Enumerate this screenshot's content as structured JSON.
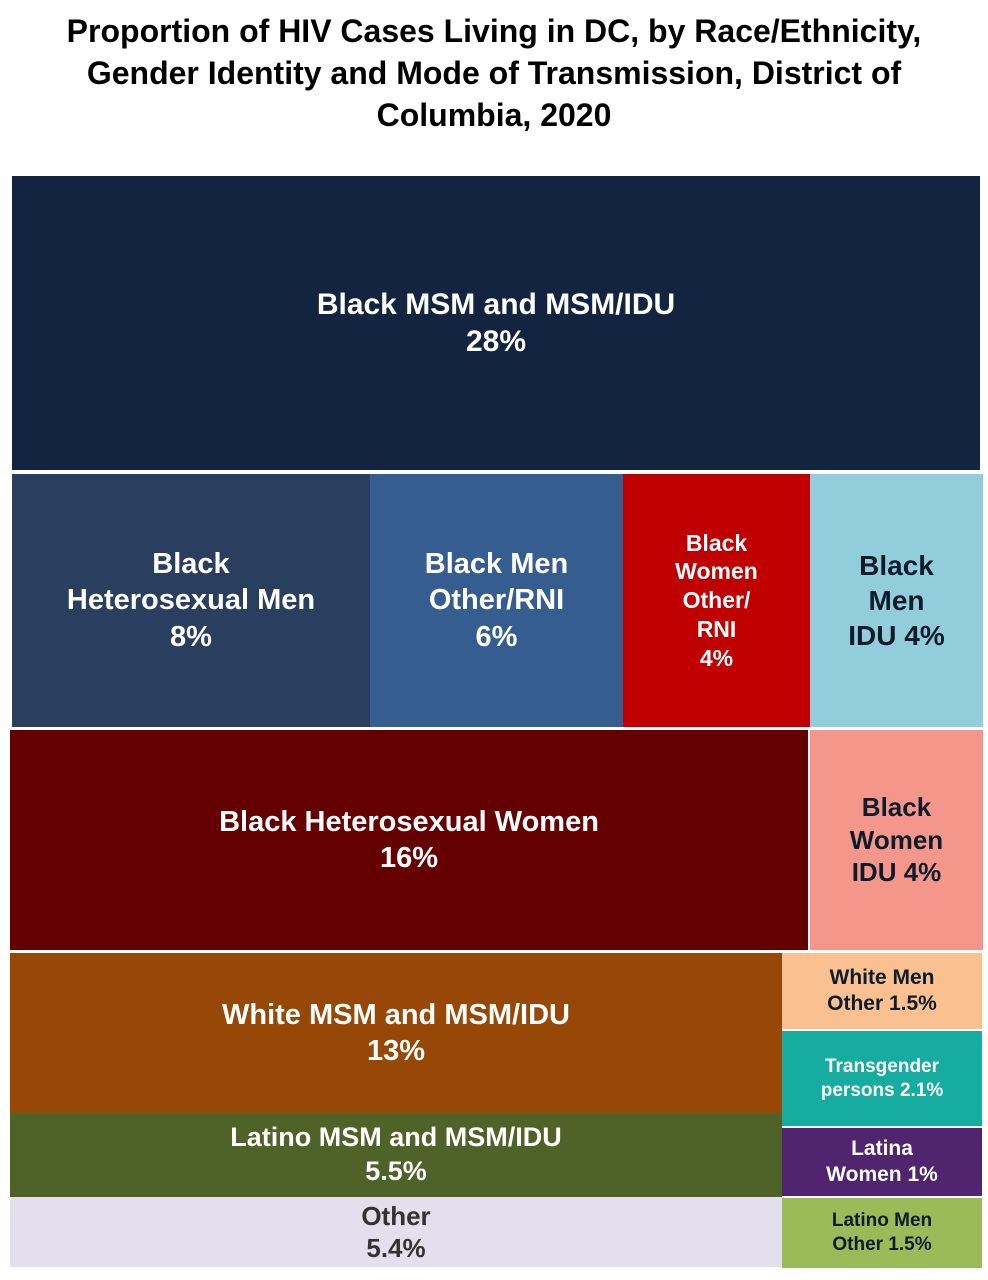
{
  "chart_data": {
    "type": "treemap",
    "title_lines": [
      "Proportion of HIV Cases Living in DC, by Race/Ethnicity,",
      "Gender Identity and Mode of Transmission, District of",
      "Columbia, 2020"
    ],
    "unit": "%",
    "tiles": [
      {
        "id": "black-msm",
        "label_lines": [
          "Black MSM and MSM/IDU"
        ],
        "value_label": "28%",
        "value": 28,
        "color": "#12243f",
        "text_color": "#ffffff"
      },
      {
        "id": "black-het-men",
        "label_lines": [
          "Black",
          "Heterosexual Men"
        ],
        "value_label": "8%",
        "value": 8,
        "color": "#2a3f5f",
        "text_color": "#ffffff"
      },
      {
        "id": "black-men-other",
        "label_lines": [
          "Black Men",
          "Other/RNI"
        ],
        "value_label": "6%",
        "value": 6,
        "color": "#355d8f",
        "text_color": "#ffffff"
      },
      {
        "id": "black-women-other",
        "label_lines": [
          "Black",
          "Women",
          "Other/",
          "RNI"
        ],
        "value_label": "4%",
        "value": 4,
        "color": "#c00000",
        "text_color": "#ffffff"
      },
      {
        "id": "black-men-idu",
        "label_lines": [
          "Black",
          "Men"
        ],
        "value_label": "IDU 4%",
        "value": 4,
        "color": "#92cddc",
        "text_color": "#0d1b2a"
      },
      {
        "id": "black-het-women",
        "label_lines": [
          "Black Heterosexual Women"
        ],
        "value_label": "16%",
        "value": 16,
        "color": "#640000",
        "text_color": "#ffffff"
      },
      {
        "id": "black-women-idu",
        "label_lines": [
          "Black",
          "Women"
        ],
        "value_label": "IDU 4%",
        "value": 4,
        "color": "#f4978a",
        "text_color": "#0d1b2a"
      },
      {
        "id": "white-msm",
        "label_lines": [
          "White MSM and MSM/IDU"
        ],
        "value_label": "13%",
        "value": 13,
        "color": "#974806",
        "text_color": "#ffffff"
      },
      {
        "id": "white-men-other",
        "label_lines": [
          "White Men"
        ],
        "value_label": "Other 1.5%",
        "value": 1.5,
        "color": "#fac08f",
        "text_color": "#0d1b2a"
      },
      {
        "id": "transgender",
        "label_lines": [
          "Transgender"
        ],
        "value_label": "persons 2.1%",
        "value": 2.1,
        "color": "#17aca0",
        "text_color": "#ffffff"
      },
      {
        "id": "latino-msm",
        "label_lines": [
          "Latino MSM and MSM/IDU"
        ],
        "value_label": "5.5%",
        "value": 5.5,
        "color": "#4f6228",
        "text_color": "#ffffff"
      },
      {
        "id": "latina-women",
        "label_lines": [
          "Latina"
        ],
        "value_label": "Women 1%",
        "value": 1,
        "color": "#50246f",
        "text_color": "#ffffff"
      },
      {
        "id": "other",
        "label_lines": [
          "Other"
        ],
        "value_label": "5.4%",
        "value": 5.4,
        "color": "#e3dfec",
        "text_color": "#333333"
      },
      {
        "id": "latino-men-other",
        "label_lines": [
          "Latino Men"
        ],
        "value_label": "Other 1.5%",
        "value": 1.5,
        "color": "#9bbb59",
        "text_color": "#0d1b2a"
      }
    ]
  }
}
